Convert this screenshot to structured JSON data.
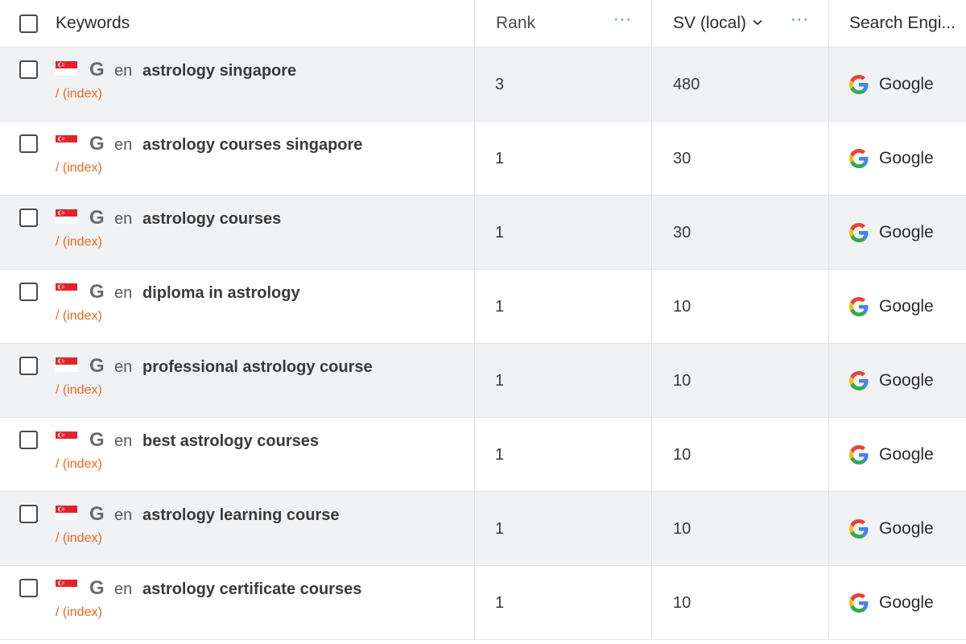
{
  "header": {
    "keywords": "Keywords",
    "rank": "Rank",
    "sv": "SV (local)",
    "search_engine": "Search Engi...",
    "more_glyph": "···"
  },
  "rows": [
    {
      "lang": "en",
      "keyword": "astrology singapore",
      "path": "/ (index)",
      "rank": "3",
      "sv": "480",
      "engine": "Google"
    },
    {
      "lang": "en",
      "keyword": "astrology courses singapore",
      "path": "/ (index)",
      "rank": "1",
      "sv": "30",
      "engine": "Google"
    },
    {
      "lang": "en",
      "keyword": "astrology courses",
      "path": "/ (index)",
      "rank": "1",
      "sv": "30",
      "engine": "Google"
    },
    {
      "lang": "en",
      "keyword": "diploma in astrology",
      "path": "/ (index)",
      "rank": "1",
      "sv": "10",
      "engine": "Google"
    },
    {
      "lang": "en",
      "keyword": "professional astrology course",
      "path": "/ (index)",
      "rank": "1",
      "sv": "10",
      "engine": "Google"
    },
    {
      "lang": "en",
      "keyword": "best astrology courses",
      "path": "/ (index)",
      "rank": "1",
      "sv": "10",
      "engine": "Google"
    },
    {
      "lang": "en",
      "keyword": "astrology learning course",
      "path": "/ (index)",
      "rank": "1",
      "sv": "10",
      "engine": "Google"
    },
    {
      "lang": "en",
      "keyword": "astrology certificate courses",
      "path": "/ (index)",
      "rank": "1",
      "sv": "10",
      "engine": "Google"
    }
  ],
  "icons": {
    "flag": "singapore-flag-icon",
    "source": "google-g-icon",
    "engine_logo": "google-logo-icon",
    "sort": "chevron-down-icon",
    "more": "more-dots-icon"
  },
  "colors": {
    "stripe": "#f1f2f4",
    "accent_dots": "#3b7ddd",
    "path_orange": "#e8691e",
    "flag_red": "#e4222c"
  }
}
